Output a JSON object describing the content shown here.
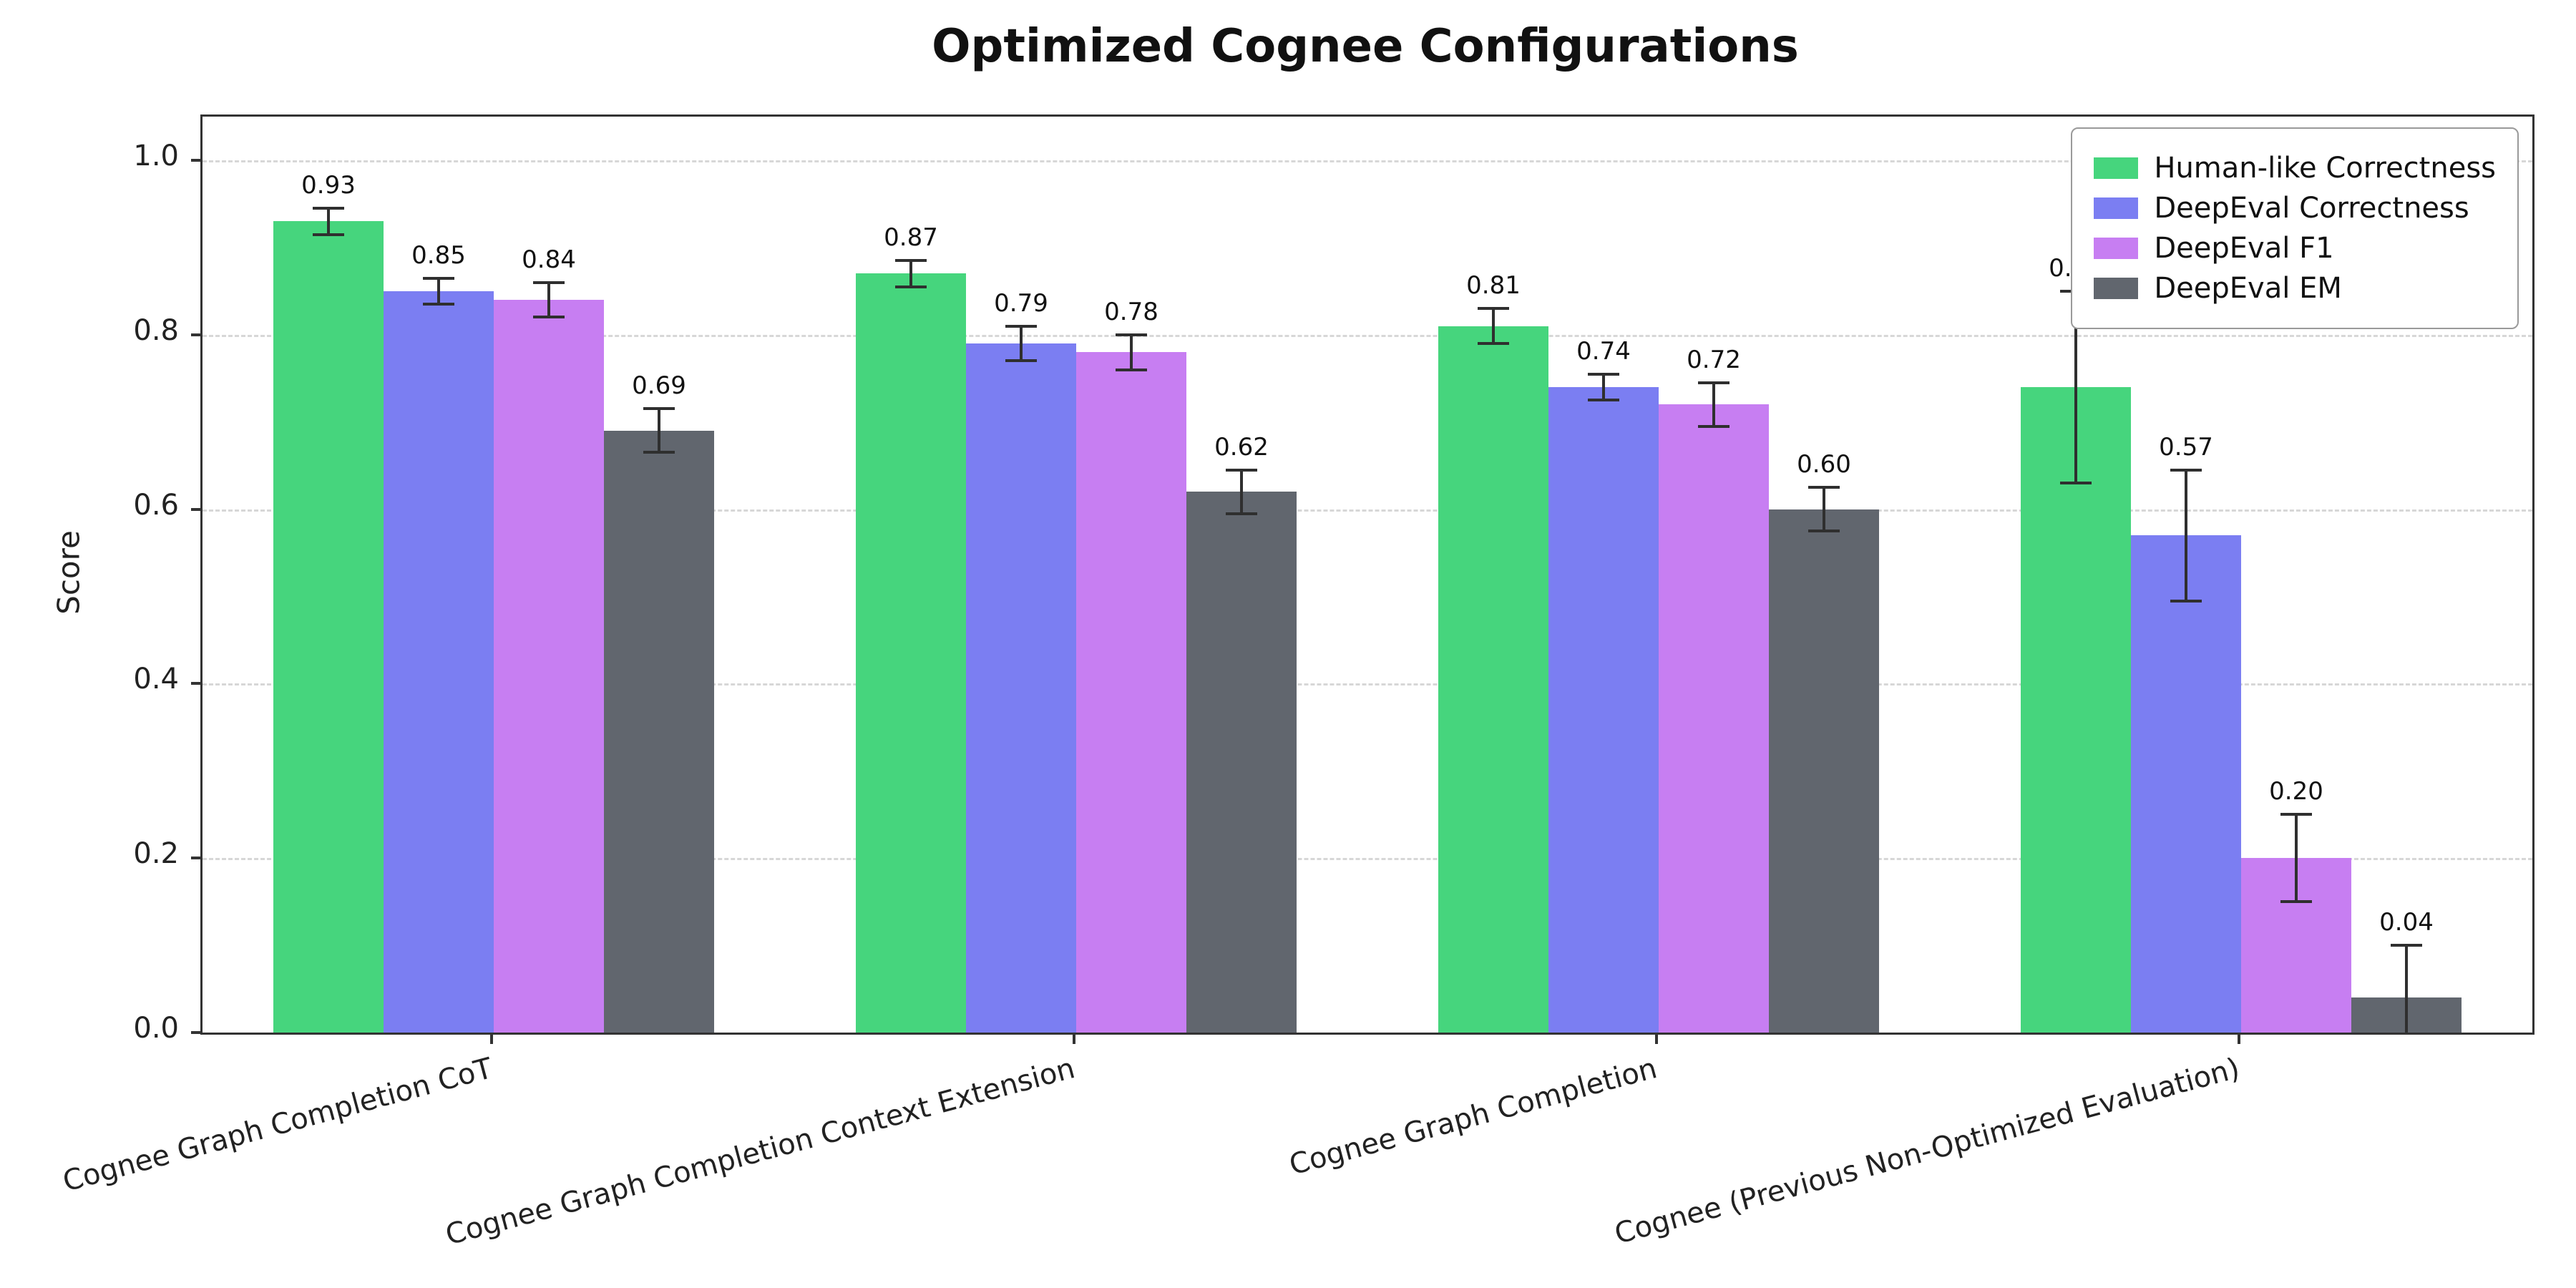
{
  "title": "Optimized Cognee Configurations",
  "chart_data": {
    "type": "bar",
    "title": "Optimized Cognee Configurations",
    "xlabel": "",
    "ylabel": "Score",
    "ylim": [
      0,
      1.05
    ],
    "yticks": [
      0.0,
      0.2,
      0.4,
      0.6,
      0.8,
      1.0
    ],
    "grid": "horizontal-dashed",
    "legend_position": "upper-right",
    "categories": [
      "Cognee Graph Completion CoT",
      "Cognee Graph Completion Context Extension",
      "Cognee Graph Completion",
      "Cognee (Previous Non-Optimized Evaluation)"
    ],
    "series": [
      {
        "name": "Human-like Correctness",
        "color": "#46d57d",
        "values": [
          0.93,
          0.87,
          0.81,
          0.74
        ],
        "errors": [
          0.015,
          0.015,
          0.02,
          0.11
        ]
      },
      {
        "name": "DeepEval Correctness",
        "color": "#7b7ef2",
        "values": [
          0.85,
          0.79,
          0.74,
          0.57
        ],
        "errors": [
          0.015,
          0.02,
          0.015,
          0.075
        ]
      },
      {
        "name": "DeepEval F1",
        "color": "#c77ef2",
        "values": [
          0.84,
          0.78,
          0.72,
          0.2
        ],
        "errors": [
          0.02,
          0.02,
          0.025,
          0.05
        ]
      },
      {
        "name": "DeepEval EM",
        "color": "#61666e",
        "values": [
          0.69,
          0.62,
          0.6,
          0.04
        ],
        "errors": [
          0.025,
          0.025,
          0.025,
          0.06
        ]
      }
    ]
  }
}
